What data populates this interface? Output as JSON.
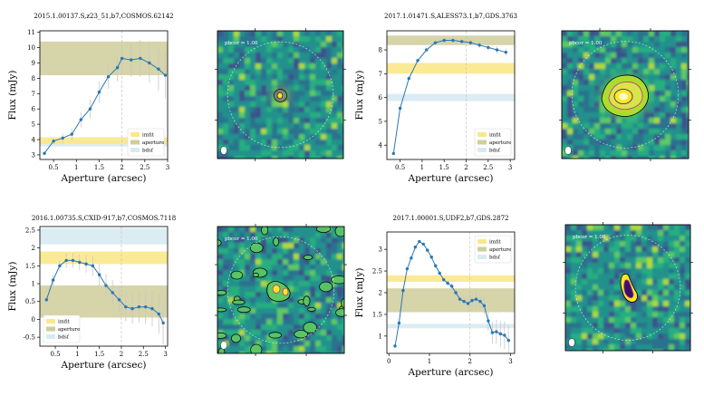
{
  "figure": {
    "axis_xlabel": "Aperture (arcsec)",
    "axis_ylabel": "Flux (mJy)",
    "legend_labels": [
      "imfit",
      "aperture",
      "bdsf"
    ],
    "colors": {
      "line": "#2a77b4",
      "imfit": "#fbe88a",
      "aperture": "#cfcd9a",
      "bdsf": "#d7eaf2",
      "errorbar": "#c8c8c8",
      "guide": "#bdbdbd"
    }
  },
  "chart_data": [
    {
      "type": "line",
      "title": "2015.1.00137.S,z23_51,b7,COSMOS.62142",
      "xlabel": "Aperture (arcsec)",
      "ylabel": "Flux (mJy)",
      "xlim": [
        0.2,
        3.0
      ],
      "ylim": [
        2.7,
        11.1
      ],
      "xticks": [
        0.5,
        1.0,
        1.5,
        2.0,
        2.5,
        3.0
      ],
      "yticks": [
        3,
        4,
        5,
        6,
        7,
        8,
        9,
        10,
        11
      ],
      "legend": "lower-right",
      "guide_x": 2.0,
      "bands": {
        "imfit": [
          3.7,
          4.15
        ],
        "aperture": [
          8.2,
          10.4
        ],
        "bdsf": [
          3.55,
          3.95
        ]
      },
      "series": [
        {
          "x": [
            0.3,
            0.5,
            0.7,
            0.9,
            1.1,
            1.3,
            1.5,
            1.7,
            1.9,
            2.0,
            2.2,
            2.4,
            2.6,
            2.8,
            2.95
          ],
          "y": [
            3.1,
            3.9,
            4.1,
            4.35,
            5.3,
            6.0,
            7.1,
            8.1,
            8.7,
            9.3,
            9.2,
            9.3,
            9.0,
            8.6,
            8.2
          ],
          "err": [
            0.1,
            0.2,
            0.3,
            0.4,
            0.5,
            0.6,
            0.7,
            0.8,
            0.9,
            1.0,
            1.1,
            1.2,
            1.3,
            1.4,
            1.5
          ]
        }
      ]
    },
    {
      "type": "line",
      "title": "2017.1.01471.S,ALESS73.1,b7,GDS.3763",
      "xlabel": "Aperture (arcsec)",
      "ylabel": "Flux (mJy)",
      "xlim": [
        0.2,
        3.1
      ],
      "ylim": [
        3.4,
        8.8
      ],
      "xticks": [
        0.5,
        1.0,
        1.5,
        2.0,
        2.5,
        3.0
      ],
      "yticks": [
        4,
        5,
        6,
        7,
        8
      ],
      "legend": "lower-right",
      "guide_x": 2.0,
      "bands": {
        "imfit": [
          7.0,
          7.45
        ],
        "aperture": [
          8.2,
          8.6
        ],
        "bdsf": [
          5.85,
          6.15
        ]
      },
      "series": [
        {
          "x": [
            0.35,
            0.5,
            0.7,
            0.9,
            1.1,
            1.3,
            1.5,
            1.7,
            1.9,
            2.1,
            2.3,
            2.5,
            2.7,
            2.9
          ],
          "y": [
            3.65,
            5.55,
            6.8,
            7.55,
            8.0,
            8.3,
            8.4,
            8.4,
            8.35,
            8.3,
            8.2,
            8.1,
            8.0,
            7.9
          ],
          "err": [
            0.05,
            0.05,
            0.05,
            0.06,
            0.07,
            0.08,
            0.09,
            0.1,
            0.11,
            0.12,
            0.13,
            0.14,
            0.15,
            0.16
          ]
        }
      ]
    },
    {
      "type": "line",
      "title": "2016.1.00735.S,CXID-917,b7,COSMOS.7118",
      "xlabel": "Aperture (arcsec)",
      "ylabel": "Flux (mJy)",
      "xlim": [
        0.15,
        3.05
      ],
      "ylim": [
        -0.75,
        2.6
      ],
      "xticks": [
        0.5,
        1.0,
        1.5,
        2.0,
        2.5,
        3.0
      ],
      "yticks": [
        -0.5,
        0.0,
        0.5,
        1.0,
        1.5,
        2.0,
        2.5
      ],
      "legend": "lower-left",
      "guide_x": 2.0,
      "bands": {
        "imfit": [
          1.55,
          1.9
        ],
        "aperture": [
          0.05,
          0.95
        ],
        "bdsf": [
          2.1,
          2.55
        ]
      },
      "series": [
        {
          "x": [
            0.3,
            0.45,
            0.6,
            0.75,
            0.9,
            1.05,
            1.2,
            1.35,
            1.5,
            1.65,
            1.8,
            1.95,
            2.1,
            2.25,
            2.4,
            2.55,
            2.7,
            2.85,
            2.95
          ],
          "y": [
            0.55,
            1.1,
            1.5,
            1.65,
            1.65,
            1.6,
            1.55,
            1.5,
            1.25,
            0.95,
            0.75,
            0.55,
            0.35,
            0.3,
            0.35,
            0.35,
            0.3,
            0.15,
            -0.1
          ],
          "err": [
            0.1,
            0.15,
            0.15,
            0.2,
            0.2,
            0.22,
            0.25,
            0.28,
            0.3,
            0.32,
            0.35,
            0.38,
            0.4,
            0.42,
            0.45,
            0.48,
            0.5,
            0.55,
            0.6
          ]
        }
      ]
    },
    {
      "type": "line",
      "title": "2017.1.00001.S,UDF2,b7,GDS.2872",
      "xlabel": "Aperture (arcsec)",
      "ylabel": "Flux (mJy)",
      "xlim": [
        -0.05,
        3.1
      ],
      "ylim": [
        0.6,
        3.4
      ],
      "xticks": [
        0,
        1,
        2,
        3
      ],
      "yticks": [
        1.0,
        1.5,
        2.0,
        2.5,
        3.0
      ],
      "legend": "top-right",
      "guide_x": 2.0,
      "bands": {
        "imfit": [
          2.25,
          2.4
        ],
        "aperture": [
          1.55,
          2.1
        ],
        "bdsf": [
          1.18,
          1.28
        ]
      },
      "series": [
        {
          "x": [
            0.15,
            0.25,
            0.35,
            0.45,
            0.55,
            0.65,
            0.75,
            0.85,
            0.95,
            1.05,
            1.15,
            1.25,
            1.35,
            1.45,
            1.55,
            1.65,
            1.75,
            1.85,
            1.95,
            2.05,
            2.15,
            2.25,
            2.35,
            2.45,
            2.55,
            2.65,
            2.75,
            2.85,
            2.95
          ],
          "y": [
            0.77,
            1.3,
            2.05,
            2.55,
            2.8,
            3.05,
            3.18,
            3.12,
            2.98,
            2.82,
            2.62,
            2.45,
            2.3,
            2.22,
            2.15,
            2.0,
            1.85,
            1.8,
            1.75,
            1.82,
            1.85,
            1.8,
            1.7,
            1.35,
            1.08,
            1.1,
            1.05,
            1.02,
            0.9
          ],
          "err": [
            0.02,
            0.02,
            0.02,
            0.02,
            0.02,
            0.03,
            0.03,
            0.03,
            0.03,
            0.04,
            0.04,
            0.05,
            0.05,
            0.06,
            0.07,
            0.08,
            0.09,
            0.1,
            0.12,
            0.14,
            0.16,
            0.18,
            0.2,
            0.22,
            0.25,
            0.28,
            0.3,
            0.32,
            0.35
          ]
        }
      ]
    }
  ],
  "maps": [
    {
      "label": "pbcor = 1.00",
      "colormap": "viridis",
      "contours": [
        "#3b0f70",
        "#b5367a",
        "#fb8861",
        "#fcfdbf"
      ],
      "source_contours": "compact bright"
    },
    {
      "label": "pbcor = 1.00",
      "colormap": "viridis",
      "contours": [
        "#3b0f70",
        "#b5367a",
        "#fb8861",
        "#fcfdbf"
      ],
      "source_contours": "extended bright"
    },
    {
      "label": "pbcor = 1.00",
      "colormap": "viridis",
      "contours": [
        "#3b0f70",
        "#b5367a",
        "#fb8861",
        "#fcfdbf"
      ],
      "source_contours": "diffuse with noise contours"
    },
    {
      "label": "pbcor = 1.00",
      "colormap": "viridis",
      "contours": [
        "#3b0f70",
        "#b5367a",
        "#fb8861",
        "#fcfdbf"
      ],
      "source_contours": "compact elongated"
    }
  ]
}
